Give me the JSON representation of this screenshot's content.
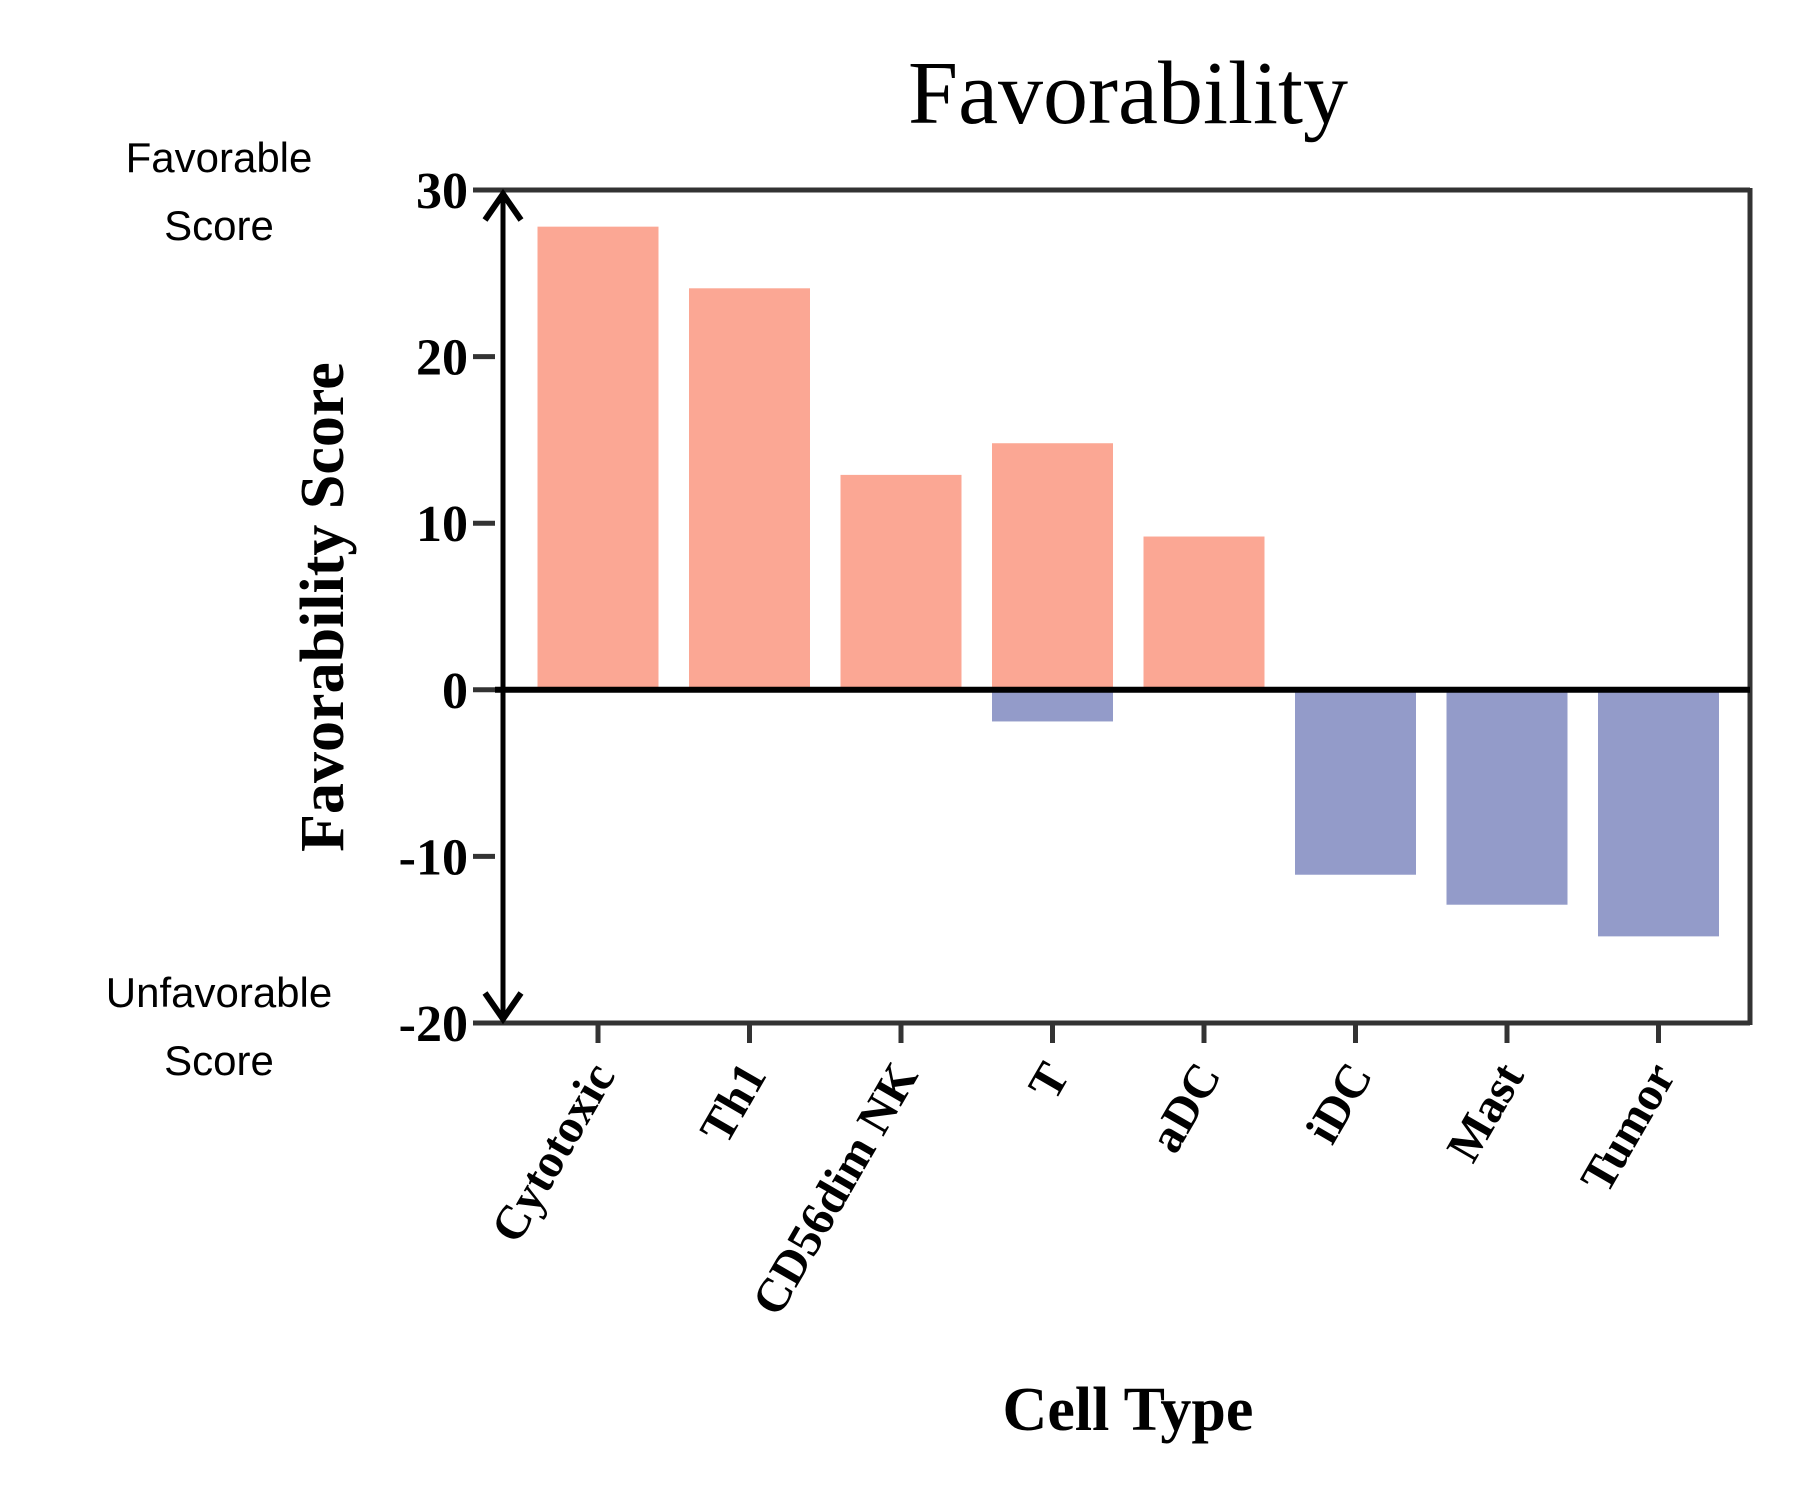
{
  "chart_data": {
    "type": "bar",
    "title": "Favorability",
    "xlabel": "Cell Type",
    "ylabel": "Favorability Score",
    "categories": [
      "Cytotoxic",
      "Th1",
      "CD56dim NK",
      "T",
      "aDC",
      "iDC",
      "Mast",
      "Tumor"
    ],
    "positive_values": [
      27.8,
      24.1,
      12.9,
      14.8,
      9.2,
      0,
      0,
      0
    ],
    "negative_values": [
      0,
      0,
      0,
      -1.9,
      0,
      -11.1,
      -12.9,
      -14.8
    ],
    "ylim": [
      -20,
      30
    ],
    "yticks": [
      "30",
      "20",
      "10",
      "0",
      "-10",
      "-20"
    ],
    "ytick_values": [
      30,
      20,
      10,
      0,
      -10,
      -20
    ],
    "annotations": {
      "favorable_line1": "Favorable",
      "favorable_line2": "Score",
      "unfavorable_line1": "Unfavorable",
      "unfavorable_line2": "Score"
    },
    "colors": {
      "positive": "#FBA794",
      "negative": "#939BC9",
      "axis": "#333333",
      "zero_line": "#000000"
    },
    "grid": false,
    "legend": "none"
  }
}
